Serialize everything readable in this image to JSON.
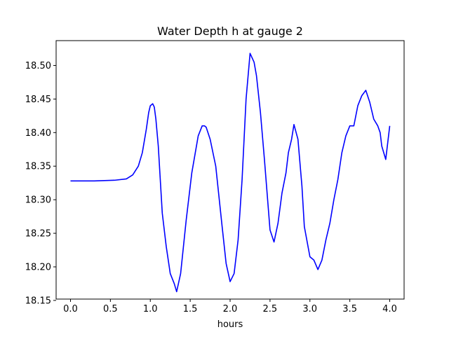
{
  "chart_data": {
    "type": "line",
    "title": "Water Depth h at gauge 2",
    "xlabel": "hours",
    "ylabel": "",
    "xlim": [
      -0.18,
      4.18
    ],
    "ylim": [
      18.152,
      18.537
    ],
    "grid": false,
    "xticks": [
      0.0,
      0.5,
      1.0,
      1.5,
      2.0,
      2.5,
      3.0,
      3.5,
      4.0
    ],
    "xtick_labels": [
      "0.0",
      "0.5",
      "1.0",
      "1.5",
      "2.0",
      "2.5",
      "3.0",
      "3.5",
      "4.0"
    ],
    "yticks": [
      18.15,
      18.2,
      18.25,
      18.3,
      18.35,
      18.4,
      18.45,
      18.5
    ],
    "ytick_labels": [
      "18.15",
      "18.20",
      "18.25",
      "18.30",
      "18.35",
      "18.40",
      "18.45",
      "18.50"
    ],
    "series": [
      {
        "color": "#0000ff",
        "x": [
          0.0,
          0.3,
          0.55,
          0.7,
          0.78,
          0.85,
          0.9,
          0.95,
          0.98,
          1.0,
          1.03,
          1.05,
          1.07,
          1.1,
          1.15,
          1.2,
          1.25,
          1.3,
          1.33,
          1.38,
          1.45,
          1.52,
          1.6,
          1.65,
          1.68,
          1.7,
          1.75,
          1.82,
          1.9,
          1.95,
          2.0,
          2.05,
          2.1,
          2.15,
          2.2,
          2.25,
          2.3,
          2.33,
          2.38,
          2.43,
          2.5,
          2.55,
          2.6,
          2.65,
          2.7,
          2.73,
          2.77,
          2.8,
          2.85,
          2.9,
          2.93,
          3.0,
          3.05,
          3.1,
          3.15,
          3.2,
          3.25,
          3.3,
          3.35,
          3.4,
          3.45,
          3.5,
          3.55,
          3.6,
          3.65,
          3.7,
          3.75,
          3.8,
          3.85,
          3.88,
          3.9,
          3.95,
          4.0
        ],
        "y": [
          18.328,
          18.328,
          18.329,
          18.331,
          18.337,
          18.35,
          18.37,
          18.405,
          18.43,
          18.44,
          18.443,
          18.438,
          18.42,
          18.38,
          18.28,
          18.23,
          18.19,
          18.175,
          18.163,
          18.19,
          18.27,
          18.34,
          18.395,
          18.41,
          18.41,
          18.408,
          18.39,
          18.35,
          18.26,
          18.205,
          18.178,
          18.19,
          18.24,
          18.33,
          18.45,
          18.518,
          18.505,
          18.485,
          18.43,
          18.36,
          18.255,
          18.237,
          18.265,
          18.31,
          18.34,
          18.37,
          18.39,
          18.412,
          18.39,
          18.32,
          18.26,
          18.215,
          18.21,
          18.196,
          18.21,
          18.24,
          18.265,
          18.3,
          18.33,
          18.37,
          18.395,
          18.41,
          18.41,
          18.44,
          18.455,
          18.463,
          18.445,
          18.42,
          18.41,
          18.4,
          18.38,
          18.36,
          18.41
        ]
      }
    ]
  }
}
